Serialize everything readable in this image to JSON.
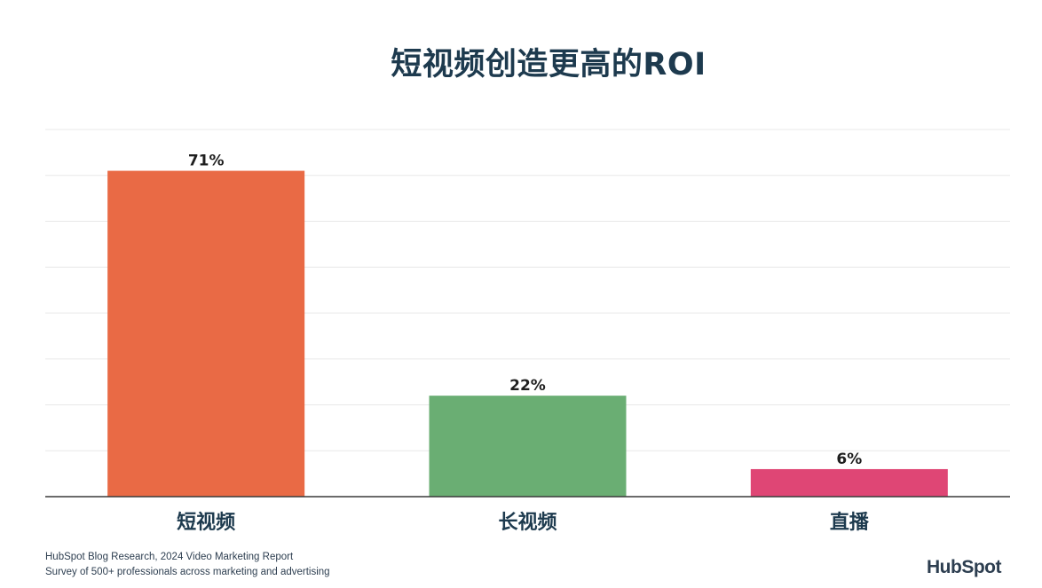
{
  "header": {
    "title": "短视频创造更高的ROI"
  },
  "chart_data": {
    "type": "bar",
    "title": "短视频创造更高的ROI",
    "categories": [
      "短视频",
      "长视频",
      "直播"
    ],
    "values": [
      71,
      22,
      6
    ],
    "value_labels": [
      "71%",
      "22%",
      "6%"
    ],
    "colors": [
      "#e96a45",
      "#6aae73",
      "#df4675"
    ],
    "ylim": [
      0,
      80
    ],
    "grid": true,
    "xlabel": "",
    "ylabel": ""
  },
  "footer": {
    "source_line1": "HubSpot Blog Research, 2024 Video Marketing Report",
    "source_line2": "Survey of 500+ professionals across marketing and advertising",
    "logo_text": "HubSpot"
  }
}
